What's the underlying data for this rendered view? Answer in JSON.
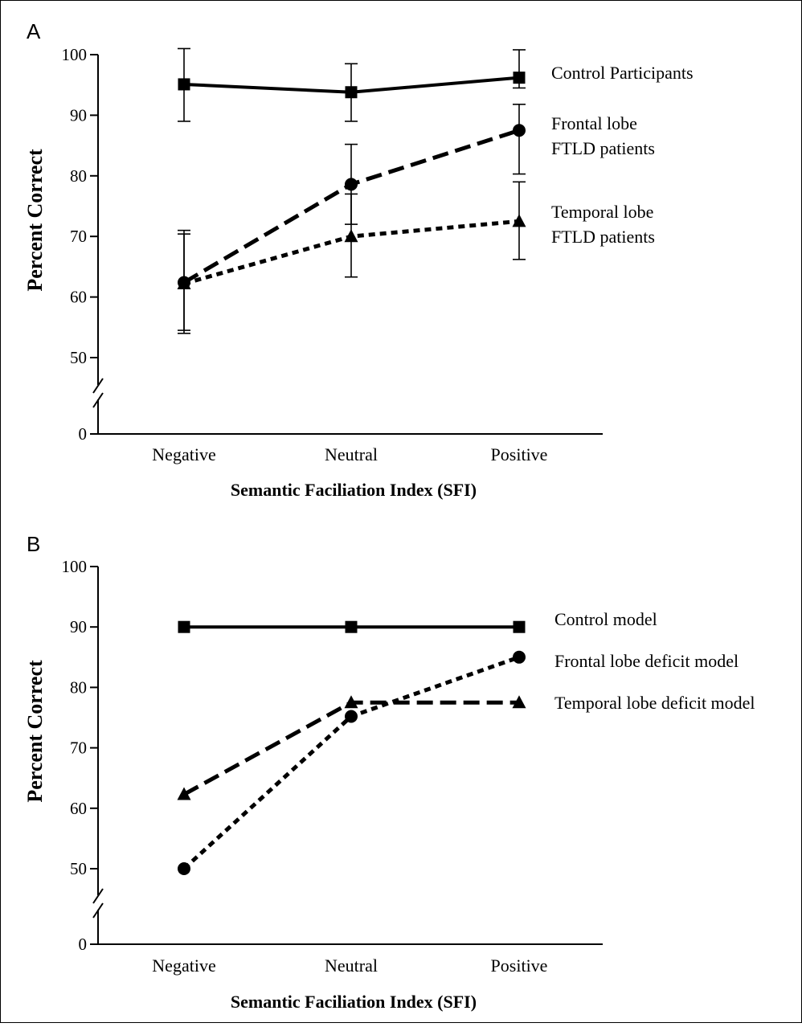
{
  "chart_data": [
    {
      "panel": "A",
      "type": "line",
      "categories": [
        "Negative",
        "Neutral",
        "Positive"
      ],
      "xlabel": "Semantic Faciliation Index (SFI)",
      "ylabel": "Percent Correct",
      "yticks": [
        0,
        50,
        60,
        70,
        80,
        90,
        100
      ],
      "ylim": [
        0,
        100
      ],
      "axis_break": true,
      "grid": false,
      "legend_position": "right (direct labels)",
      "series": [
        {
          "name": "Control Participants",
          "values": [
            95.1,
            93.8,
            96.2
          ],
          "err_low": [
            89.0,
            89.0,
            94.5
          ],
          "err_high": [
            101.0,
            98.5,
            100.8
          ],
          "marker": "square",
          "dash": "solid",
          "color": "#000000"
        },
        {
          "name": "Frontal lobe FTLD patients",
          "values": [
            62.4,
            78.6,
            87.5
          ],
          "err_low": [
            54.5,
            72.0,
            80.3
          ],
          "err_high": [
            70.4,
            85.2,
            91.8
          ],
          "marker": "circle",
          "dash": "dashed",
          "color": "#000000"
        },
        {
          "name": "Temporal lobe FTLD patients",
          "values": [
            62.2,
            70.0,
            72.5
          ],
          "err_low": [
            54.0,
            63.3,
            66.2
          ],
          "err_high": [
            71.0,
            77.0,
            79.0
          ],
          "marker": "triangle",
          "dash": "dotted",
          "color": "#000000"
        }
      ],
      "legend_labels": [
        [
          "Control Participants"
        ],
        [
          "Frontal lobe",
          "FTLD patients"
        ],
        [
          "Temporal lobe",
          "FTLD patients"
        ]
      ]
    },
    {
      "panel": "B",
      "type": "line",
      "categories": [
        "Negative",
        "Neutral",
        "Positive"
      ],
      "xlabel": "Semantic Faciliation Index (SFI)",
      "ylabel": "Percent Correct",
      "yticks": [
        0,
        50,
        60,
        70,
        80,
        90,
        100
      ],
      "ylim": [
        0,
        100
      ],
      "axis_break": true,
      "grid": false,
      "legend_position": "right (direct labels)",
      "series": [
        {
          "name": "Control model",
          "values": [
            90.0,
            90.0,
            90.0
          ],
          "marker": "square",
          "dash": "solid",
          "color": "#000000"
        },
        {
          "name": "Frontal lobe deficit model",
          "values": [
            50.0,
            75.2,
            85.0
          ],
          "marker": "circle",
          "dash": "dotted",
          "color": "#000000"
        },
        {
          "name": "Temporal lobe deficit model",
          "values": [
            62.3,
            77.5,
            77.5
          ],
          "marker": "triangle",
          "dash": "dashed",
          "color": "#000000"
        }
      ],
      "legend_labels": [
        [
          "Control model"
        ],
        [
          "Frontal lobe deficit model"
        ],
        [
          "Temporal lobe deficit model"
        ]
      ]
    }
  ]
}
